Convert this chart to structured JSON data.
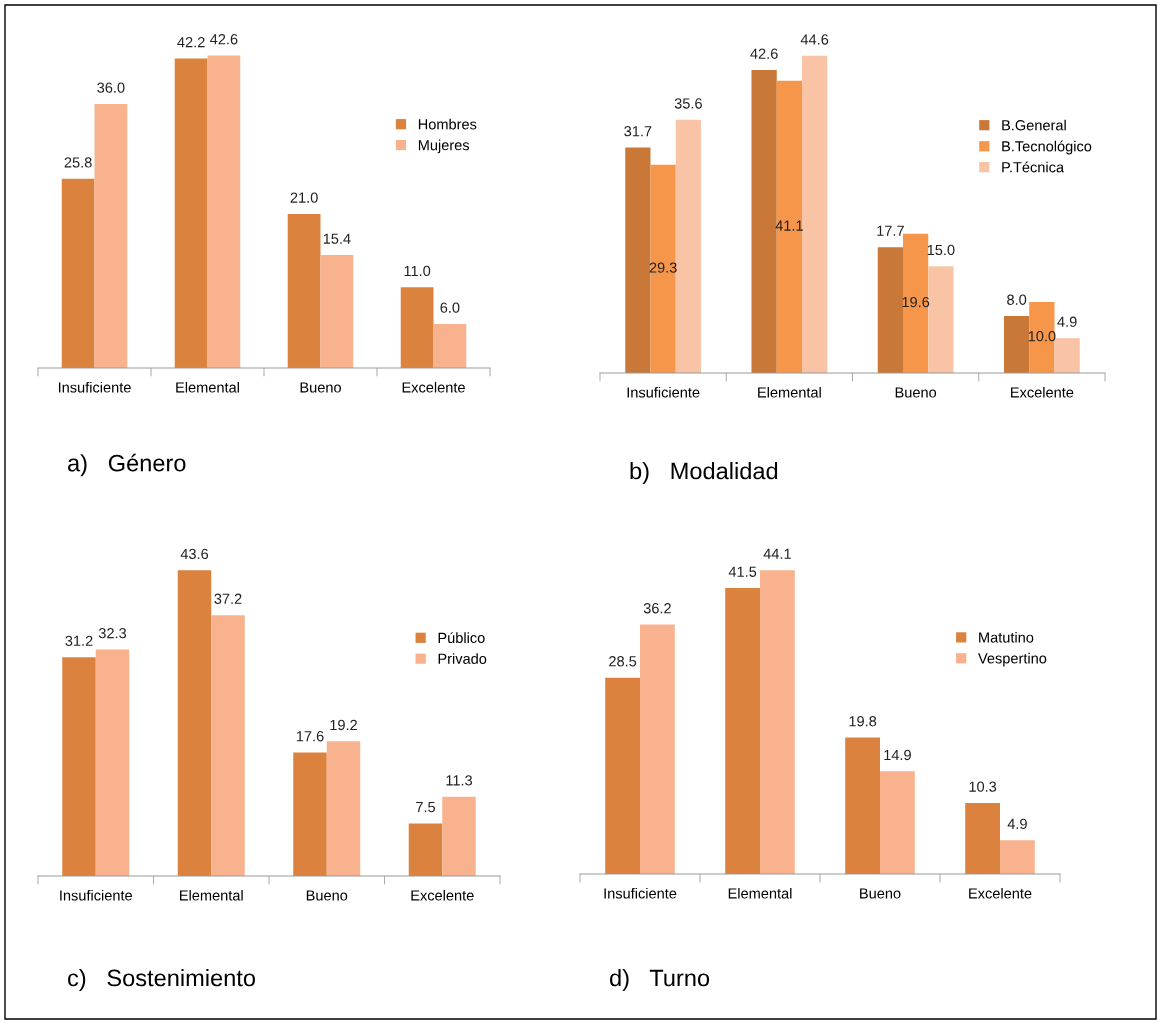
{
  "chart_data": [
    {
      "type": "bar",
      "title": "a)   Género",
      "categories": [
        "Insuficiente",
        "Elemental",
        "Bueno",
        "Excelente"
      ],
      "series": [
        {
          "name": "Hombres",
          "color": "#db823e",
          "values": [
            25.8,
            42.2,
            21.0,
            11.0
          ],
          "value_labels": [
            "25.8",
            "42.2",
            "21.0",
            "11.0"
          ]
        },
        {
          "name": "Mujeres",
          "color": "#f8b38e",
          "values": [
            36.0,
            42.6,
            15.4,
            6.0
          ],
          "value_labels": [
            "36.0",
            "42.6",
            "15.4",
            "6.0"
          ]
        }
      ],
      "legend": "right",
      "grid": false
    },
    {
      "type": "bar",
      "title": "b)   Modalidad",
      "categories": [
        "Insuficiente",
        "Elemental",
        "Bueno",
        "Excelente"
      ],
      "series": [
        {
          "name": "B.General",
          "color": "#c97838",
          "values": [
            31.7,
            42.6,
            17.7,
            8.0
          ],
          "value_labels": [
            "31.7",
            "42.6",
            "17.7",
            "8.0"
          ]
        },
        {
          "name": "B.Tecnológico",
          "color": "#f5964a",
          "values": [
            29.3,
            41.1,
            19.6,
            10.0
          ],
          "value_labels": [
            "29.3",
            "41.1",
            "19.6",
            "10.0"
          ]
        },
        {
          "name": "P.Técnica",
          "color": "#f9c4a6",
          "values": [
            35.6,
            44.6,
            15.0,
            4.9
          ],
          "value_labels": [
            "35.6",
            "44.6",
            "15.0",
            "4.9"
          ]
        }
      ],
      "legend": "right",
      "grid": false
    },
    {
      "type": "bar",
      "title": "c)   Sostenimiento",
      "categories": [
        "Insuficiente",
        "Elemental",
        "Bueno",
        "Excelente"
      ],
      "series": [
        {
          "name": "Público",
          "color": "#db823e",
          "values": [
            31.2,
            43.6,
            17.6,
            7.5
          ]
        },
        {
          "name": "Privado",
          "color": "#f8b38e",
          "values": [
            32.3,
            37.2,
            19.2,
            11.3
          ]
        }
      ],
      "data_labels": true,
      "legend": "right",
      "grid": false
    },
    {
      "type": "bar",
      "title": "d)   Turno",
      "categories": [
        "Insuficiente",
        "Elemental",
        "Bueno",
        "Excelente"
      ],
      "series": [
        {
          "name": "Matutino",
          "color": "#db823e",
          "values": [
            28.5,
            41.5,
            19.8,
            10.3
          ]
        },
        {
          "name": "Vespertino",
          "color": "#f8b38e",
          "values": [
            36.2,
            44.1,
            14.9,
            4.9
          ]
        }
      ],
      "data_labels": true,
      "legend": "right",
      "grid": false
    }
  ]
}
